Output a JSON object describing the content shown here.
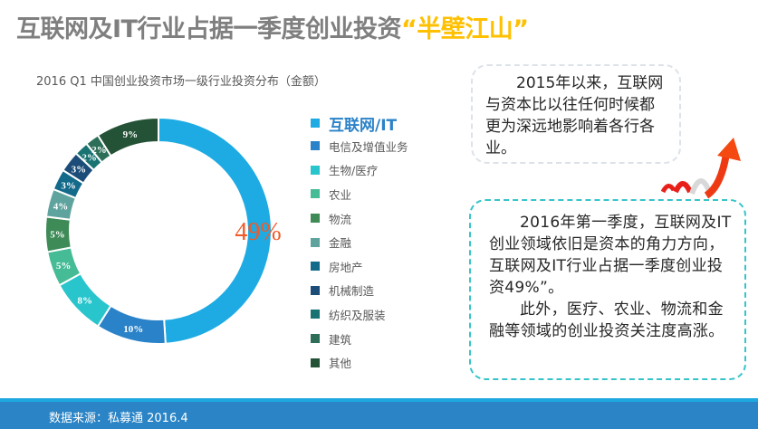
{
  "header": {
    "title_main": "互联网及IT行业占据一季度创业投资",
    "title_highlight": "“半壁江山”"
  },
  "colors": {
    "title": "#7f7f7f",
    "highlight": "#ffc000",
    "big_label": "#f05a28",
    "footer": "#2a84c6"
  },
  "chart_data": {
    "type": "pie",
    "donut": true,
    "title": "2016 Q1 中国创业投资市场一级行业投资分布（金额）",
    "categories": [
      "互联网/IT",
      "电信及增值业务",
      "生物/医疗",
      "农业",
      "物流",
      "金融",
      "房地产",
      "机械制造",
      "纺织及服装",
      "建筑",
      "其他"
    ],
    "values": [
      49,
      10,
      8,
      5,
      5,
      4,
      3,
      3,
      2,
      2,
      9
    ],
    "labels": [
      "49%",
      "10%",
      "8%",
      "5%",
      "5%",
      "4%",
      "3%",
      "3%",
      "2%",
      "2%",
      "9%"
    ],
    "colors": [
      "#1eabe3",
      "#2a82c8",
      "#29c5cc",
      "#45bb96",
      "#3e8b57",
      "#5fa39e",
      "#146a8a",
      "#1b4d78",
      "#1a7373",
      "#2c6e57",
      "#245236"
    ],
    "legend_position": "right"
  },
  "notes": {
    "box1": "2015年以来，互联网与资本比以往任何时候都更为深远地影响着各行各业。",
    "box2_p1": "2016年第一季度，互联网及IT创业领域依旧是资本的角力方向，互联网及IT行业占据一季度创业投资49%”。",
    "box2_p2": "此外，医疗、农业、物流和金融等领域的创业投资关注度高涨。"
  },
  "footer": {
    "source": "数据来源：私募通 2016.4"
  }
}
